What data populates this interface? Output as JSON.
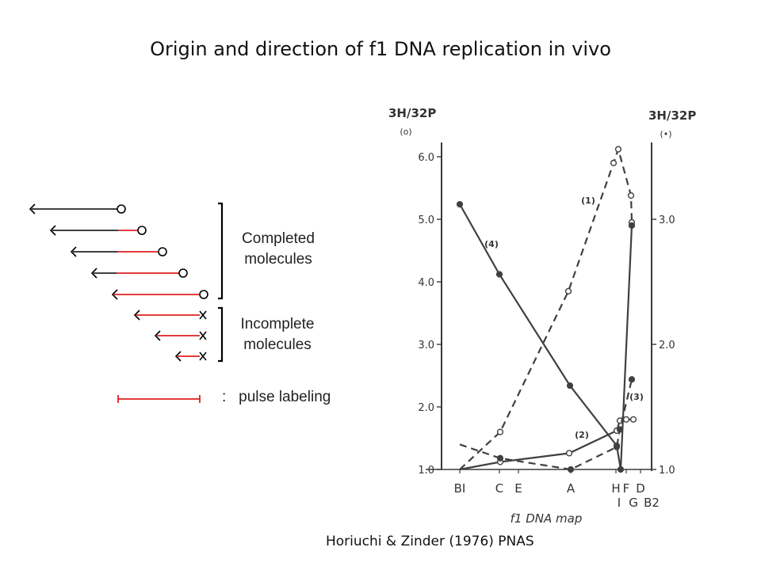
{
  "slide": {
    "title": "Origin and direction of f1 DNA replication in vivo",
    "citation": "Horiuchi & Zinder (1976) PNAS"
  },
  "diagram": {
    "completed_label_line1": "Completed",
    "completed_label_line2": "molecules",
    "incomplete_label_line1": "Incomplete",
    "incomplete_label_line2": "molecules",
    "pulse_colon": ":",
    "pulse_label": "pulse labeling",
    "colors": {
      "strand": "#000000",
      "pulse": "#e02020"
    },
    "completed_molecules": [
      {
        "labeled_fraction": 0.0
      },
      {
        "labeled_fraction": 0.26
      },
      {
        "labeled_fraction": 0.5
      },
      {
        "labeled_fraction": 0.74
      },
      {
        "labeled_fraction": 1.0
      }
    ],
    "incomplete_molecules": [
      {
        "labeled_fraction": 1.0
      },
      {
        "labeled_fraction": 1.0
      },
      {
        "labeled_fraction": 1.0
      }
    ]
  },
  "chart_data": {
    "type": "line",
    "title": "",
    "ylabel_left": "3H/32P",
    "ylabel_left_sub": "(o)",
    "ylabel_right": "3H/32P",
    "ylabel_right_sub": "(•)",
    "xlabel": "f1 DNA map",
    "ylim_left": [
      1.0,
      6.0
    ],
    "ylim_right": [
      1.0,
      3.5
    ],
    "yticks_left": [
      "1.0",
      "2.0",
      "3.0",
      "4.0",
      "5.0",
      "6.0"
    ],
    "yticks_right": [
      "1.0",
      "2.0",
      "3.0"
    ],
    "x_categories_top": [
      "BI",
      "C",
      "E",
      "A",
      "H",
      "F",
      "D"
    ],
    "x_categories_bottom": [
      "I",
      "G",
      "B2"
    ],
    "series": [
      {
        "name": "(1)",
        "axis": "left",
        "style": "dashed",
        "marker": "open",
        "x": [
          0,
          0.105,
          0.315,
          0.39,
          0.425,
          0.465,
          0.49
        ],
        "y": [
          1.0,
          1.6,
          3.85,
          5.9,
          6.1,
          5.4,
          5.0
        ]
      },
      {
        "name": "(2)",
        "axis": "left",
        "style": "solid",
        "marker": "open",
        "x": [
          0,
          0.105,
          0.315,
          0.44,
          0.465,
          0.48,
          0.49
        ],
        "y": [
          1.0,
          1.12,
          1.27,
          1.62,
          1.78,
          1.8,
          1.8
        ]
      },
      {
        "name": "(3)",
        "axis": "right",
        "style": "dashed",
        "marker": "filled",
        "x": [
          0,
          0.105,
          0.315,
          0.44,
          0.47,
          0.49
        ],
        "y": [
          1.2,
          1.08,
          1.0,
          1.18,
          1.32,
          1.74
        ]
      },
      {
        "name": "(4)",
        "axis": "right",
        "style": "solid",
        "marker": "filled",
        "x": [
          0,
          0.105,
          0.315,
          0.44,
          0.46,
          0.49
        ],
        "y": [
          3.1,
          2.55,
          1.67,
          1.19,
          1.0,
          2.95
        ]
      }
    ]
  }
}
